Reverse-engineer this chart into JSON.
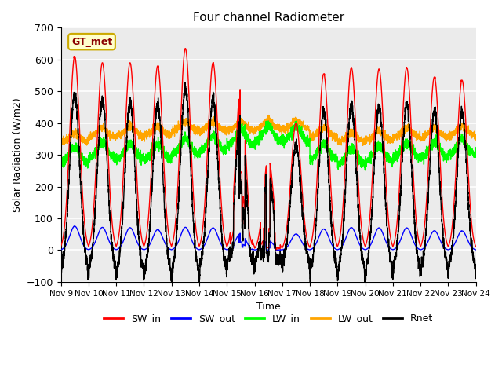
{
  "title": "Four channel Radiometer",
  "xlabel": "Time",
  "ylabel": "Solar Radiation (W/m2)",
  "ylim": [
    -100,
    700
  ],
  "xlim": [
    0,
    15
  ],
  "background_color": "#ebebeb",
  "grid_color": "white",
  "annotation_text": "GT_met",
  "annotation_color": "#8B0000",
  "annotation_bg": "#ffffcc",
  "annotation_border": "#ccaa00",
  "x_tick_labels": [
    "Nov 9",
    "Nov 10",
    "Nov 11",
    "Nov 12",
    "Nov 13",
    "Nov 14",
    "Nov 15",
    "Nov 16",
    "Nov 17",
    "Nov 18",
    "Nov 19",
    "Nov 20",
    "Nov 21",
    "Nov 22",
    "Nov 23",
    "Nov 24"
  ],
  "legend_entries": [
    "SW_in",
    "SW_out",
    "LW_in",
    "LW_out",
    "Rnet"
  ],
  "legend_colors": [
    "red",
    "blue",
    "lime",
    "orange",
    "black"
  ],
  "line_width": 1.0,
  "num_days": 15,
  "points_per_day": 288
}
